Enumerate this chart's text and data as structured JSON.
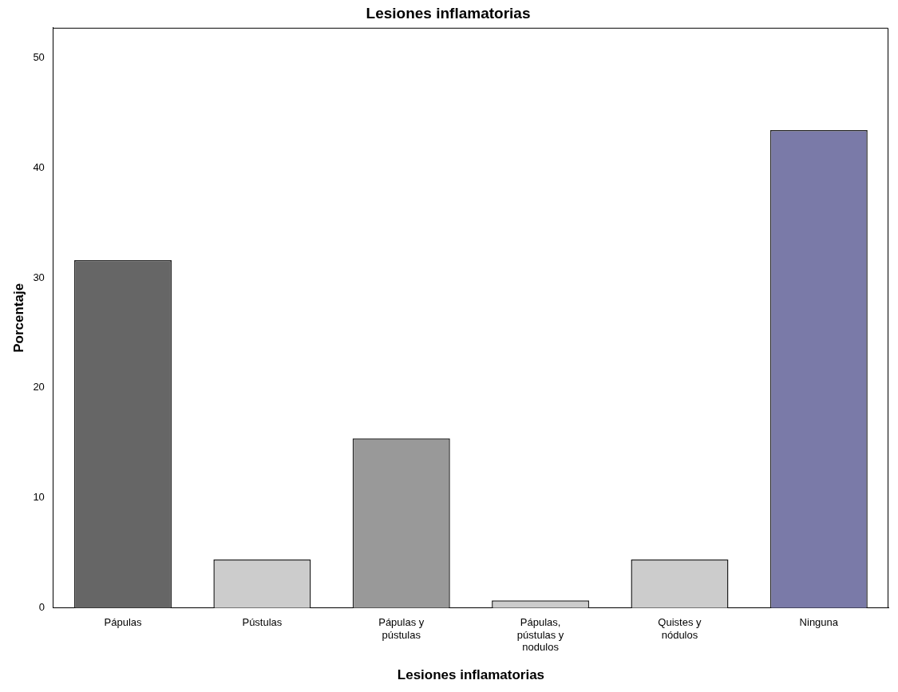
{
  "chart_data": {
    "type": "bar",
    "title": "Lesiones inflamatorias",
    "xlabel": "Lesiones inflamatorias",
    "ylabel": "Porcentaje",
    "categories": [
      "Pápulas",
      "Pústulas",
      "Pápulas y pústulas",
      "Pápulas, pústulas y nodulos",
      "Quistes y nódulos",
      "Ninguna"
    ],
    "values": [
      31.6,
      4.4,
      15.4,
      0.7,
      4.4,
      43.4
    ],
    "colors": [
      "#666666",
      "#cccccc",
      "#999999",
      "#cccccc",
      "#cccccc",
      "#7a7aa8"
    ],
    "ylim": [
      0,
      52.7
    ],
    "yticks": [
      0,
      10,
      20,
      30,
      40,
      50
    ],
    "grid": false,
    "legend": false
  }
}
